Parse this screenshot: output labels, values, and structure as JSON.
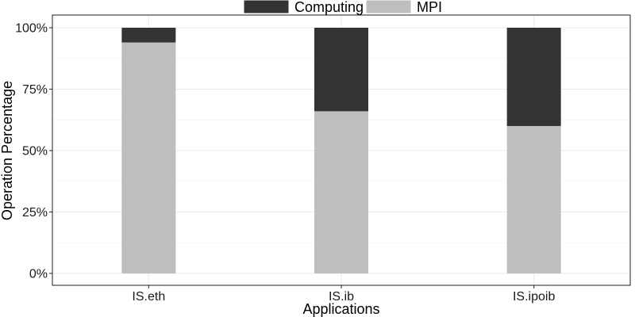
{
  "chart_data": {
    "type": "bar",
    "stacked": true,
    "categories": [
      "IS.eth",
      "IS.ib",
      "IS.ipoib"
    ],
    "series": [
      {
        "name": "MPI",
        "values": [
          94,
          66,
          60
        ],
        "color": "#bebebe"
      },
      {
        "name": "Computing",
        "values": [
          6,
          34,
          40
        ],
        "color": "#333333"
      }
    ],
    "xlabel": "Applications",
    "ylabel": "Operation Percentage",
    "ylim": [
      0,
      100
    ],
    "yticks": [
      "0%",
      "25%",
      "50%",
      "75%",
      "100%"
    ],
    "grid": true,
    "legend": {
      "position": "top",
      "entries": [
        "Computing",
        "MPI"
      ]
    }
  }
}
